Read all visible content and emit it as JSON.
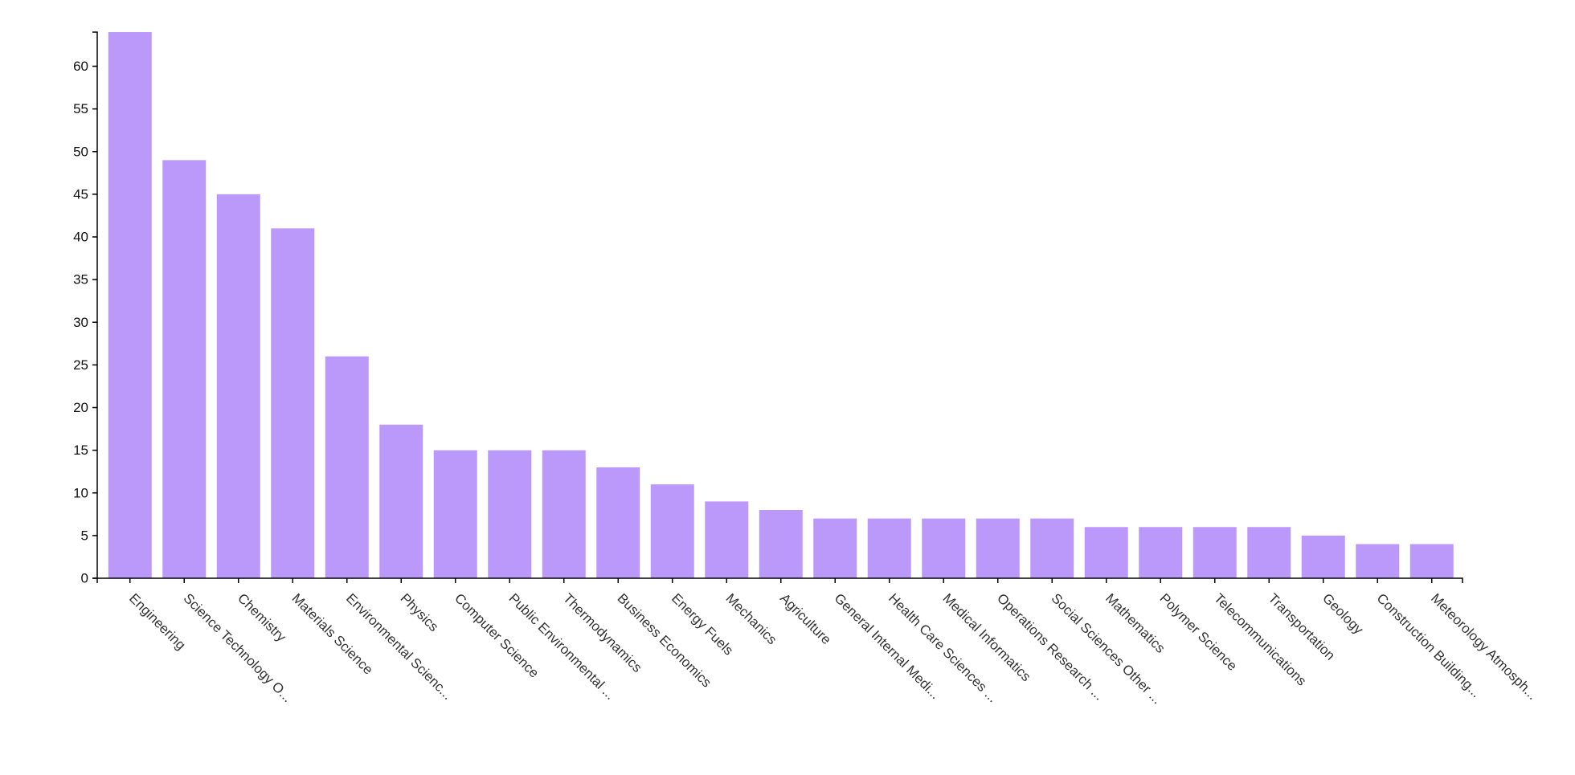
{
  "chart_data": {
    "type": "bar",
    "title": "",
    "xlabel": "",
    "ylabel": "",
    "ylim": [
      0,
      64
    ],
    "y_ticks": [
      0,
      5,
      10,
      15,
      20,
      25,
      30,
      35,
      40,
      45,
      50,
      55,
      60
    ],
    "grid": false,
    "legend": "none",
    "bar_color": "#bb99fa",
    "categories": [
      "Engineering",
      "Science Technology O...",
      "Chemistry",
      "Materials Science",
      "Environmental Scienc...",
      "Physics",
      "Computer Science",
      "Public Environmental ...",
      "Thermodynamics",
      "Business Economics",
      "Energy Fuels",
      "Mechanics",
      "Agriculture",
      "General Internal Medi...",
      "Health Care Sciences ...",
      "Medical Informatics",
      "Operations Research ...",
      "Social Sciences Other ...",
      "Mathematics",
      "Polymer Science",
      "Telecommunications",
      "Transportation",
      "Geology",
      "Construction Building...",
      "Meteorology Atmosph..."
    ],
    "values": [
      64,
      49,
      45,
      41,
      26,
      18,
      15,
      15,
      15,
      13,
      11,
      9,
      8,
      7,
      7,
      7,
      7,
      7,
      6,
      6,
      6,
      6,
      5,
      4,
      4
    ]
  }
}
